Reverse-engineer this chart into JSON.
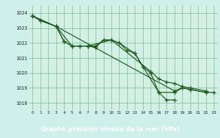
{
  "title": "Graphe pression niveau de la mer (hPa)",
  "background_color": "#cff0e8",
  "plot_bg": "#d4f0e4",
  "grid_color": "#7dc4a0",
  "line_color": "#1a5c1a",
  "marker_color": "#1a5c1a",
  "footer_color": "#2a7a2a",
  "footer_text_color": "#ffffff",
  "xlim": [
    -0.5,
    23.5
  ],
  "ylim": [
    1017.5,
    1024.5
  ],
  "yticks": [
    1018,
    1019,
    1020,
    1021,
    1022,
    1023,
    1024
  ],
  "xticks": [
    0,
    1,
    2,
    3,
    4,
    5,
    6,
    7,
    8,
    9,
    10,
    11,
    12,
    13,
    14,
    15,
    16,
    17,
    18,
    19,
    20,
    21,
    22,
    23
  ],
  "x_s1": [
    0,
    1,
    3,
    4,
    5,
    6,
    7,
    8,
    9,
    10,
    11,
    13,
    16,
    18,
    19,
    20,
    22
  ],
  "y_s1": [
    1023.8,
    1023.5,
    1023.1,
    1022.1,
    1021.8,
    1021.8,
    1021.8,
    1021.7,
    1022.2,
    1022.2,
    1022.0,
    1021.3,
    1018.7,
    1018.7,
    1019.0,
    1018.9,
    1018.7
  ],
  "x_s2": [
    0,
    3,
    5,
    7,
    10,
    15,
    16,
    17,
    18,
    19,
    20,
    22
  ],
  "y_s2": [
    1023.8,
    1023.1,
    1021.8,
    1021.8,
    1022.2,
    1020.1,
    1019.6,
    1019.4,
    1019.3,
    1019.1,
    1019.0,
    1018.8
  ],
  "x_s3": [
    0,
    3,
    4,
    5,
    6,
    7,
    8,
    9,
    10,
    11,
    12,
    13,
    14,
    15,
    16,
    17,
    18
  ],
  "y_s3": [
    1023.8,
    1023.1,
    1022.1,
    1021.8,
    1021.8,
    1021.8,
    1021.8,
    1022.2,
    1022.2,
    1022.0,
    1021.5,
    1021.3,
    1020.4,
    1020.0,
    1018.7,
    1018.2,
    1018.2
  ],
  "x_s4": [
    0,
    1,
    3,
    18,
    19,
    20,
    22,
    23
  ],
  "y_s4": [
    1023.8,
    1023.5,
    1023.1,
    1018.8,
    1019.0,
    1018.9,
    1018.7,
    1018.7
  ]
}
